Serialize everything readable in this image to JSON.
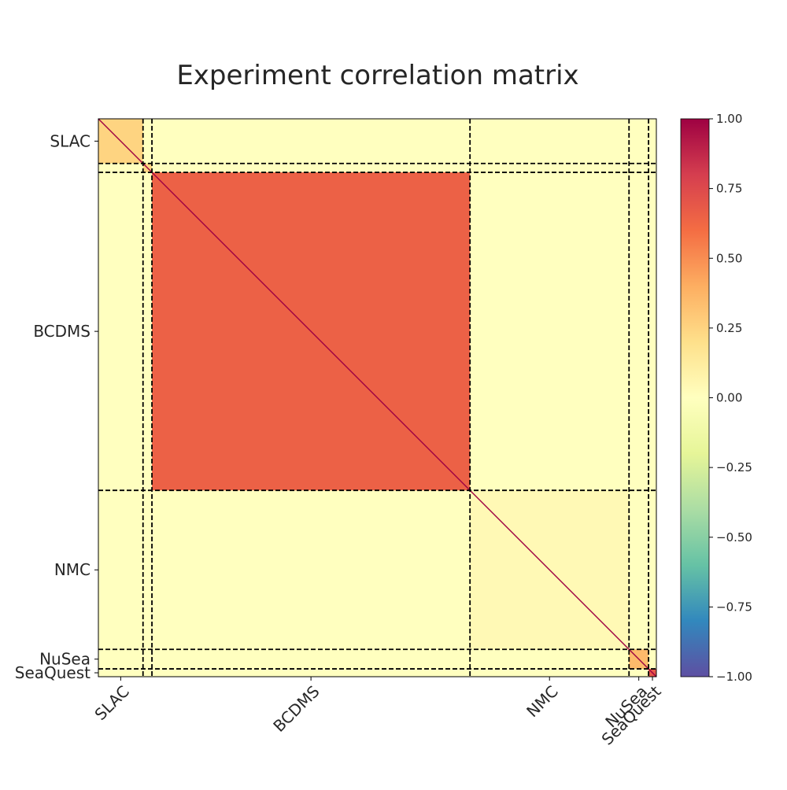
{
  "chart_data": {
    "type": "heatmap",
    "title": "Experiment correlation matrix",
    "xlabel": "",
    "ylabel": "",
    "colormap": "Spectral_r",
    "value_range": [
      -1.0,
      1.0
    ],
    "colorbar_ticks": [
      "1.00",
      "0.75",
      "0.50",
      "0.25",
      "0.00",
      "−0.25",
      "−0.50",
      "−0.75",
      "−1.00"
    ],
    "colorbar_tick_values": [
      1.0,
      0.75,
      0.5,
      0.25,
      0.0,
      -0.25,
      -0.5,
      -0.75,
      -1.0
    ],
    "experiments": [
      {
        "name": "SLAC",
        "fraction": 0.08,
        "self_correlation": 0.25,
        "ticks": true
      },
      {
        "name": "SLAC",
        "fraction": 0.016,
        "self_correlation": 0.25,
        "ticks": false
      },
      {
        "name": "BCDMS",
        "fraction": 0.57,
        "self_correlation": 0.65,
        "ticks": true
      },
      {
        "name": "NMC",
        "fraction": 0.285,
        "self_correlation": 0.04,
        "ticks": true
      },
      {
        "name": "NuSea",
        "fraction": 0.035,
        "self_correlation": 0.35,
        "ticks": true
      },
      {
        "name": "SeaQuest",
        "fraction": 0.014,
        "self_correlation": 0.7,
        "ticks": true
      }
    ],
    "off_diagonal_correlation": 0.0,
    "diagonal_value": 1.0,
    "grid": false,
    "block_separators": "dashed"
  },
  "colors": {
    "separator": "#000000",
    "text": "#262626"
  }
}
